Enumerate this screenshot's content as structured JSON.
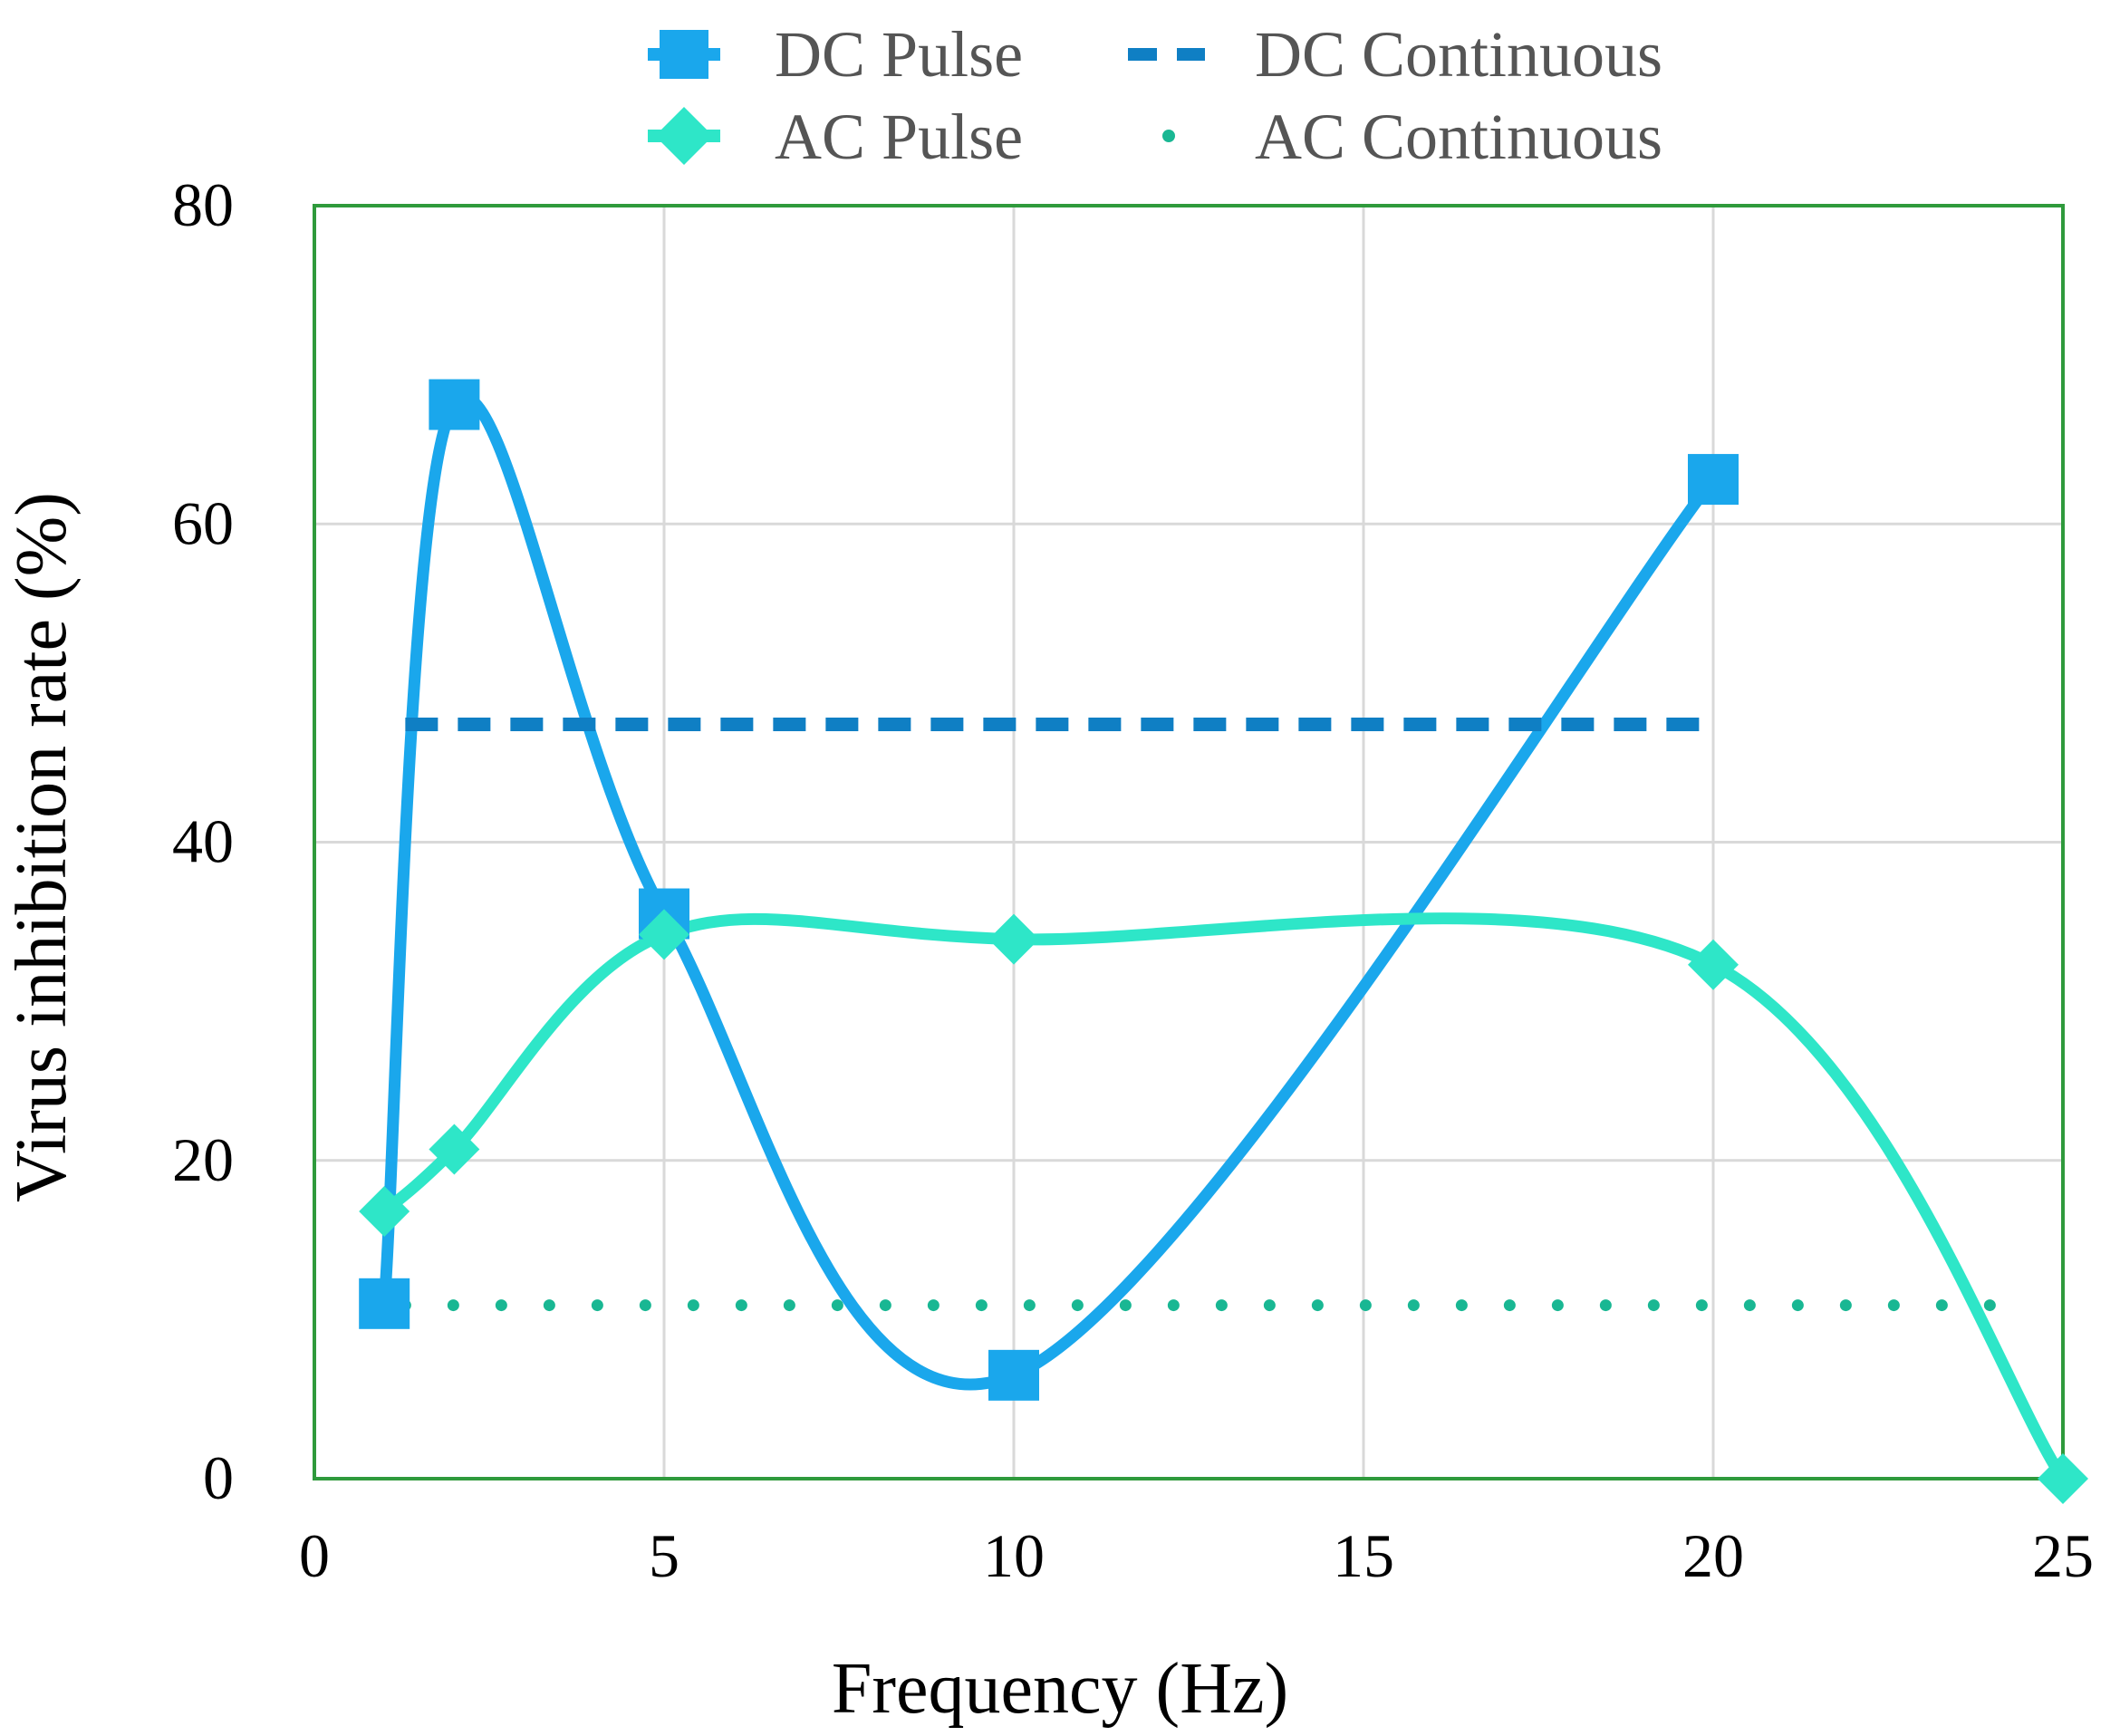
{
  "chart_data": {
    "type": "line",
    "title": "",
    "xlabel": "Frequency (Hz)",
    "ylabel": "Virus inhibition rate (%)",
    "xlim": [
      0,
      25
    ],
    "ylim": [
      0,
      80
    ],
    "xticks": [
      0,
      5,
      10,
      15,
      20,
      25
    ],
    "yticks": [
      0,
      20,
      40,
      60,
      80
    ],
    "grid": true,
    "legend_position": "top-center",
    "series": [
      {
        "name": "DC Pulse",
        "style": "smooth-line-square-markers",
        "color": "#1aa7ec",
        "x": [
          1,
          2,
          5,
          10,
          20
        ],
        "y": [
          11,
          67.5,
          35.5,
          6.5,
          62.8
        ]
      },
      {
        "name": "AC Pulse",
        "style": "smooth-line-diamond-markers",
        "color": "#2ee6c8",
        "x": [
          1,
          2,
          5,
          10,
          20,
          25
        ],
        "y": [
          16.8,
          20.7,
          34.2,
          33.9,
          32.3,
          0
        ]
      },
      {
        "name": "DC Continuous",
        "style": "dashed",
        "color": "#0f7fc4",
        "x": [
          1.3,
          20
        ],
        "y": [
          47.4,
          47.4
        ]
      },
      {
        "name": "AC Continuous",
        "style": "dotted",
        "color": "#19b793",
        "x": [
          1.3,
          24.5
        ],
        "y": [
          10.9,
          10.9
        ]
      }
    ]
  },
  "colors": {
    "frame": "#2f9a3c",
    "grid": "#d9d9d9"
  }
}
